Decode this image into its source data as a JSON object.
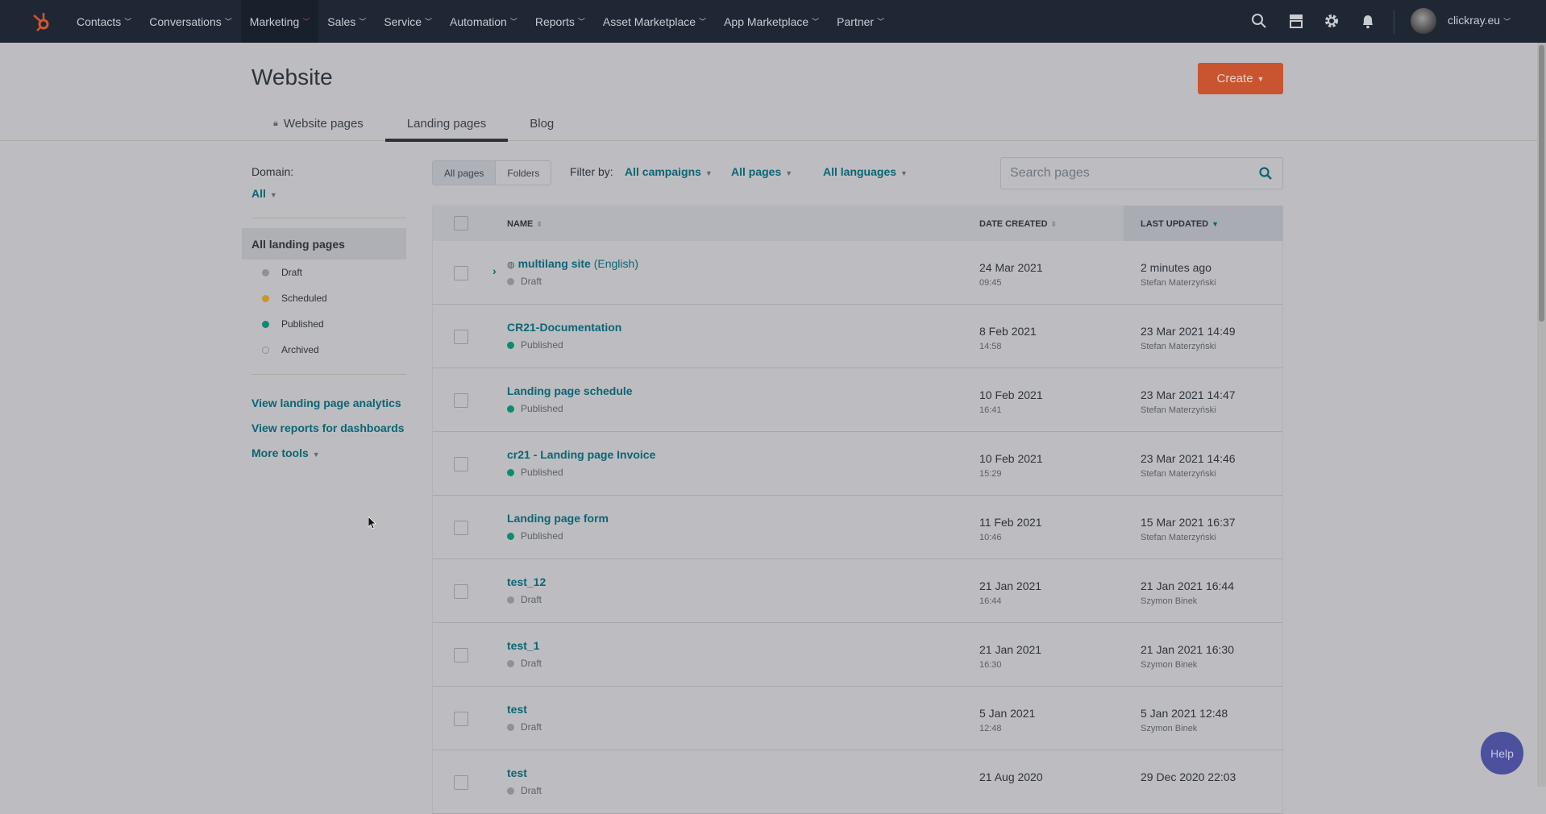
{
  "nav": {
    "items": [
      {
        "label": "Contacts"
      },
      {
        "label": "Conversations"
      },
      {
        "label": "Marketing",
        "active": true
      },
      {
        "label": "Sales"
      },
      {
        "label": "Service"
      },
      {
        "label": "Automation"
      },
      {
        "label": "Reports"
      },
      {
        "label": "Asset Marketplace"
      },
      {
        "label": "App Marketplace"
      },
      {
        "label": "Partner"
      }
    ],
    "account": "clickray.eu",
    "icons": [
      "search-icon",
      "marketplace-icon",
      "gear-icon",
      "bell-icon"
    ]
  },
  "header": {
    "title": "Website",
    "create_label": "Create"
  },
  "tabs": [
    {
      "label": "Website pages",
      "locked": true
    },
    {
      "label": "Landing pages",
      "active": true
    },
    {
      "label": "Blog"
    }
  ],
  "sidebar": {
    "domain_label": "Domain:",
    "domain_value": "All",
    "selected": "All landing pages",
    "statuses": [
      {
        "label": "Draft",
        "color": "#8d9198"
      },
      {
        "label": "Scheduled",
        "color": "#c9952e"
      },
      {
        "label": "Published",
        "color": "#0e8a73"
      },
      {
        "label": "Archived",
        "color": "hollow"
      }
    ],
    "links": [
      "View landing page analytics",
      "View reports for dashboards",
      "More tools"
    ]
  },
  "toolbar": {
    "view_toggle": [
      "All pages",
      "Folders"
    ],
    "filter_label": "Filter by:",
    "filters": [
      "All campaigns",
      "All pages",
      "All languages"
    ],
    "search_placeholder": "Search pages"
  },
  "table": {
    "headers": [
      "NAME",
      "DATE CREATED",
      "LAST UPDATED"
    ],
    "rows": [
      {
        "name": "multilang site",
        "suffix": "(English)",
        "status": "Draft",
        "created": "24 Mar 2021",
        "time": "09:45",
        "updated": "2 minutes ago",
        "author": "Stefan Materzyński",
        "multilang": true
      },
      {
        "name": "CR21-Documentation",
        "status": "Published",
        "created": "8 Feb 2021",
        "time": "14:58",
        "updated": "23 Mar 2021 14:49",
        "author": "Stefan Materzyński"
      },
      {
        "name": "Landing page schedule",
        "status": "Published",
        "created": "10 Feb 2021",
        "time": "16:41",
        "updated": "23 Mar 2021 14:47",
        "author": "Stefan Materzyński"
      },
      {
        "name": "cr21 - Landing page Invoice",
        "status": "Published",
        "created": "10 Feb 2021",
        "time": "15:29",
        "updated": "23 Mar 2021 14:46",
        "author": "Stefan Materzyński"
      },
      {
        "name": "Landing page form",
        "status": "Published",
        "created": "11 Feb 2021",
        "time": "10:46",
        "updated": "15 Mar 2021 16:37",
        "author": "Stefan Materzyński"
      },
      {
        "name": "test_12",
        "status": "Draft",
        "created": "21 Jan 2021",
        "time": "16:44",
        "updated": "21 Jan 2021 16:44",
        "author": "Szymon Binek"
      },
      {
        "name": "test_1",
        "status": "Draft",
        "created": "21 Jan 2021",
        "time": "16:30",
        "updated": "21 Jan 2021 16:30",
        "author": "Szymon Binek"
      },
      {
        "name": "test",
        "status": "Draft",
        "created": "5 Jan 2021",
        "time": "12:48",
        "updated": "5 Jan 2021 12:48",
        "author": "Szymon Binek"
      },
      {
        "name": "test",
        "status": "Draft",
        "created": "21 Aug 2020",
        "time": "",
        "updated": "29 Dec 2020 22:03",
        "author": ""
      }
    ]
  },
  "help_label": "Help"
}
